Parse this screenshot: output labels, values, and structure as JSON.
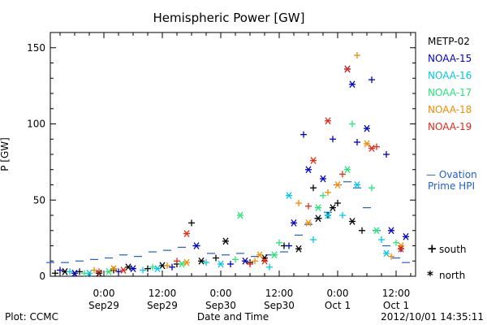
{
  "chart_data": {
    "type": "scatter",
    "title": "Hemispheric Power [GW]",
    "xlabel": "Date and Time",
    "ylabel": "P [GW]",
    "ylim": [
      0,
      160
    ],
    "yticks": [
      0,
      50,
      100,
      150
    ],
    "xlim": [
      "2012-09-28T13:00",
      "2012-10-01T16:00"
    ],
    "xticks": [
      {
        "x": "2012-09-29T00:00",
        "time": "0:00",
        "date": "Sep29"
      },
      {
        "x": "2012-09-29T12:00",
        "time": "12:00",
        "date": "Sep29"
      },
      {
        "x": "2012-09-30T00:00",
        "time": "0:00",
        "date": "Sep30"
      },
      {
        "x": "2012-09-30T12:00",
        "time": "12:00",
        "date": "Sep30"
      },
      {
        "x": "2012-10-01T00:00",
        "time": "0:00",
        "date": "Oct 1"
      },
      {
        "x": "2012-10-01T12:00",
        "time": "12:00",
        "date": "Oct 1"
      }
    ],
    "grid": false,
    "legend": {
      "placement": "right",
      "series_names": [
        "METP-02",
        "NOAA-15",
        "NOAA-16",
        "NOAA-17",
        "NOAA-18",
        "NOAA-19"
      ],
      "colors": [
        "#000000",
        "#0000cc",
        "#00c8e6",
        "#22e878",
        "#f08c00",
        "#e62814"
      ],
      "ovation_label_line1": "— Ovation",
      "ovation_label_line2": "Prime HPI",
      "ovation_color": "#1f5fcf",
      "south_label": "south",
      "north_label": "north",
      "south_symbol": "+",
      "north_symbol": "*"
    },
    "ovation_hpi": {
      "name": "Ovation Prime HPI",
      "color": "#1f5fcf",
      "x": [
        "2012-09-28T13:00",
        "2012-09-28T16:00",
        "2012-09-28T19:00",
        "2012-09-28T22:00",
        "2012-09-29T01:00",
        "2012-09-29T04:00",
        "2012-09-29T07:00",
        "2012-09-29T10:00",
        "2012-09-29T13:00",
        "2012-09-29T16:00",
        "2012-09-29T19:00",
        "2012-09-29T22:00",
        "2012-09-30T01:00",
        "2012-09-30T04:00",
        "2012-09-30T07:00",
        "2012-09-30T10:00",
        "2012-09-30T13:00",
        "2012-09-30T16:00",
        "2012-09-30T18:00",
        "2012-09-30T20:00",
        "2012-09-30T22:00",
        "2012-10-01T00:00",
        "2012-10-01T02:00",
        "2012-10-01T04:00",
        "2012-10-01T06:00",
        "2012-10-01T08:00",
        "2012-10-01T10:00",
        "2012-10-01T12:00",
        "2012-10-01T14:00"
      ],
      "y": [
        9,
        9,
        10,
        11,
        12,
        14,
        13,
        16,
        17,
        19,
        20,
        15,
        14,
        15,
        13,
        14,
        16,
        27,
        34,
        38,
        42,
        60,
        62,
        58,
        45,
        30,
        20,
        12,
        9
      ]
    },
    "series": [
      {
        "name": "METP-02",
        "color": "#000000",
        "south": {
          "x": [
            "2012-09-28T14:00",
            "2012-09-28T19:00",
            "2012-09-29T02:00",
            "2012-09-29T09:00",
            "2012-09-29T15:00",
            "2012-09-29T18:00",
            "2012-09-29T23:00",
            "2012-09-30T06:00",
            "2012-09-30T13:00",
            "2012-09-30T19:00",
            "2012-09-30T22:00",
            "2012-10-01T00:00",
            "2012-10-01T05:00"
          ],
          "y": [
            2,
            3,
            4,
            5,
            8,
            35,
            12,
            9,
            20,
            58,
            40,
            48,
            30
          ]
        },
        "north": {
          "x": [
            "2012-09-28T16:00",
            "2012-09-28T23:00",
            "2012-09-29T05:00",
            "2012-09-29T12:00",
            "2012-09-29T20:00",
            "2012-09-30T01:00",
            "2012-09-30T09:00",
            "2012-09-30T16:00",
            "2012-09-30T20:00",
            "2012-09-30T23:00",
            "2012-10-01T03:00"
          ],
          "y": [
            3,
            2,
            6,
            7,
            10,
            23,
            12,
            18,
            38,
            45,
            36
          ]
        }
      },
      {
        "name": "NOAA-15",
        "color": "#0000cc",
        "south": {
          "x": [
            "2012-09-28T15:00",
            "2012-09-29T03:00",
            "2012-09-29T14:00",
            "2012-09-30T02:00",
            "2012-09-30T14:00",
            "2012-09-30T17:00",
            "2012-09-30T23:00",
            "2012-10-01T04:00",
            "2012-10-01T07:00",
            "2012-10-01T10:00",
            "2012-10-01T13:00"
          ],
          "y": [
            4,
            3,
            6,
            8,
            20,
            93,
            90,
            88,
            129,
            80,
            18
          ]
        },
        "north": {
          "x": [
            "2012-09-28T18:00",
            "2012-09-29T06:00",
            "2012-09-29T19:00",
            "2012-09-30T05:00",
            "2012-09-30T15:00",
            "2012-09-30T18:00",
            "2012-09-30T21:00",
            "2012-10-01T02:00",
            "2012-10-01T03:00",
            "2012-10-01T06:00",
            "2012-10-01T11:00",
            "2012-10-01T14:00"
          ],
          "y": [
            2,
            5,
            20,
            10,
            35,
            70,
            64,
            136,
            126,
            97,
            30,
            26
          ]
        }
      },
      {
        "name": "NOAA-16",
        "color": "#00c8e6",
        "south": {
          "x": [
            "2012-09-28T17:00",
            "2012-09-29T08:00",
            "2012-09-29T21:00",
            "2012-09-30T10:00",
            "2012-09-30T19:00",
            "2012-10-01T01:00",
            "2012-10-01T09:00"
          ],
          "y": [
            3,
            4,
            9,
            6,
            24,
            40,
            24
          ]
        },
        "north": {
          "x": [
            "2012-09-28T21:00",
            "2012-09-29T11:00",
            "2012-09-30T00:00",
            "2012-09-30T14:00",
            "2012-09-30T22:00",
            "2012-10-01T04:00",
            "2012-10-01T10:00"
          ],
          "y": [
            2,
            5,
            8,
            53,
            40,
            60,
            15
          ]
        }
      },
      {
        "name": "NOAA-17",
        "color": "#22e878",
        "south": {
          "x": [
            "2012-09-28T20:00",
            "2012-09-29T10:00",
            "2012-09-30T03:00",
            "2012-09-30T12:00",
            "2012-09-30T21:00",
            "2012-10-01T03:00",
            "2012-10-01T07:00",
            "2012-10-01T12:00"
          ],
          "y": [
            2,
            6,
            11,
            22,
            53,
            100,
            58,
            22
          ]
        },
        "north": {
          "x": [
            "2012-09-29T01:00",
            "2012-09-29T16:00",
            "2012-09-30T04:00",
            "2012-09-30T11:00",
            "2012-09-30T20:00",
            "2012-10-01T02:00",
            "2012-10-01T08:00"
          ],
          "y": [
            3,
            8,
            40,
            14,
            45,
            70,
            30
          ]
        }
      },
      {
        "name": "NOAA-18",
        "color": "#f08c00",
        "south": {
          "x": [
            "2012-09-28T22:00",
            "2012-09-29T13:00",
            "2012-09-30T07:00",
            "2012-09-30T16:00",
            "2012-09-30T22:00",
            "2012-10-01T04:00",
            "2012-10-01T11:00"
          ],
          "y": [
            4,
            7,
            10,
            48,
            55,
            145,
            13
          ]
        },
        "north": {
          "x": [
            "2012-09-29T02:00",
            "2012-09-29T17:00",
            "2012-09-30T08:00",
            "2012-09-30T18:00",
            "2012-10-01T00:00",
            "2012-10-01T06:00",
            "2012-10-01T13:00"
          ],
          "y": [
            5,
            9,
            14,
            35,
            60,
            87,
            20
          ]
        }
      },
      {
        "name": "NOAA-19",
        "color": "#e62814",
        "south": {
          "x": [
            "2012-09-28T23:00",
            "2012-09-29T15:00",
            "2012-09-30T06:00",
            "2012-09-30T18:00",
            "2012-10-01T01:00",
            "2012-10-01T08:00"
          ],
          "y": [
            3,
            10,
            8,
            46,
            67,
            85
          ]
        },
        "north": {
          "x": [
            "2012-09-29T04:00",
            "2012-09-29T17:00",
            "2012-09-30T09:00",
            "2012-09-30T19:00",
            "2012-09-30T22:00",
            "2012-10-01T02:00",
            "2012-10-01T07:00",
            "2012-10-01T13:00"
          ],
          "y": [
            4,
            28,
            10,
            76,
            102,
            136,
            84,
            18
          ]
        }
      }
    ]
  },
  "footer": {
    "plot_credit": "Plot: CCMC",
    "timestamp": "2012/10/01  14:35:11"
  }
}
